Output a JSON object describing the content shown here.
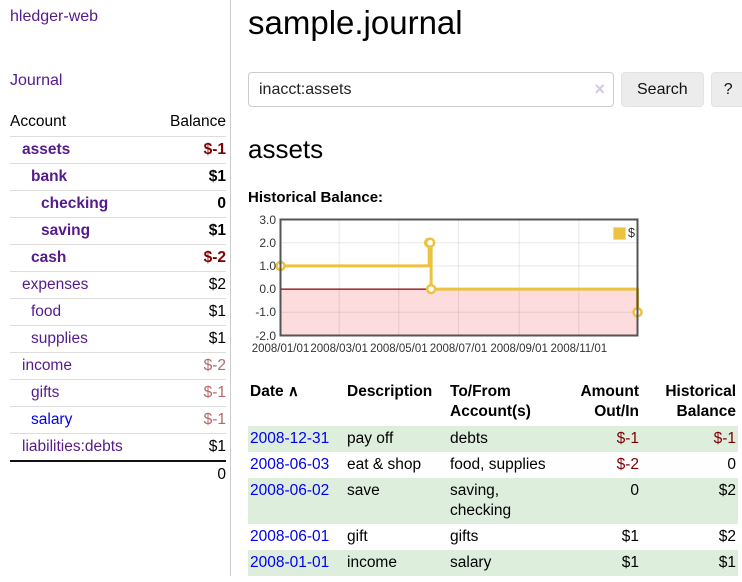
{
  "sidebar": {
    "brand": "hledger-web",
    "journal_link": "Journal",
    "accounts": {
      "col_account": "Account",
      "col_balance": "Balance",
      "rows": [
        {
          "name": "assets",
          "balance": "$-1"
        },
        {
          "name": "bank",
          "balance": "$1"
        },
        {
          "name": "checking",
          "balance": "0"
        },
        {
          "name": "saving",
          "balance": "$1"
        },
        {
          "name": "cash",
          "balance": "$-2"
        },
        {
          "name": "expenses",
          "balance": "$2"
        },
        {
          "name": "food",
          "balance": "$1"
        },
        {
          "name": "supplies",
          "balance": "$1"
        },
        {
          "name": "income",
          "balance": "$-2"
        },
        {
          "name": "gifts",
          "balance": "$-1"
        },
        {
          "name": "salary",
          "balance": "$-1"
        },
        {
          "name": "liabilities:debts",
          "balance": "$1"
        }
      ],
      "total": "0"
    }
  },
  "header": {
    "title": "sample.journal"
  },
  "search": {
    "value": "inacct:assets",
    "button_label": "Search",
    "help_label": "?"
  },
  "icons": {
    "clear_search": "×",
    "sort_ascending": "∧"
  },
  "account_page": {
    "heading": "assets",
    "chart_title": "Historical Balance:"
  },
  "chart_data": {
    "type": "line",
    "step": true,
    "title": "Historical Balance",
    "series": [
      {
        "name": "$",
        "points": [
          {
            "date": "2008-01-01",
            "value": 1
          },
          {
            "date": "2008-06-01",
            "value": 2
          },
          {
            "date": "2008-06-02",
            "value": 2
          },
          {
            "date": "2008-06-03",
            "value": 0
          },
          {
            "date": "2008-12-31",
            "value": -1
          }
        ]
      }
    ],
    "x_range": [
      "2008-01-01",
      "2008-12-31"
    ],
    "x_ticks": [
      "2008/01/01",
      "2008/03/01",
      "2008/05/01",
      "2008/07/01",
      "2008/09/01",
      "2008/11/01"
    ],
    "y_ticks": [
      3.0,
      2.0,
      1.0,
      0.0,
      -1.0,
      -2.0
    ],
    "ylim": [
      -2,
      3
    ],
    "grid": true,
    "legend": {
      "label": "$",
      "position": "top-right"
    },
    "colors": {
      "line": "#edc240",
      "negative_region": "#fcdcdc",
      "zero_line": "#8b0000",
      "border": "#545454"
    }
  },
  "register": {
    "headers": {
      "date": "Date",
      "description": "Description",
      "accounts": "To/From Account(s)",
      "amount": "Amount Out/In",
      "balance": "Historical Balance"
    },
    "rows": [
      {
        "date": "2008-12-31",
        "description": "pay off",
        "accounts": "debts",
        "amount": "$-1",
        "balance": "$-1"
      },
      {
        "date": "2008-06-03",
        "description": "eat & shop",
        "accounts": "food, supplies",
        "amount": "$-2",
        "balance": "0"
      },
      {
        "date": "2008-06-02",
        "description": "save",
        "accounts": "saving, checking",
        "amount": "0",
        "balance": "$2"
      },
      {
        "date": "2008-06-01",
        "description": "gift",
        "accounts": "gifts",
        "amount": "$1",
        "balance": "$2"
      },
      {
        "date": "2008-01-01",
        "description": "income",
        "accounts": "salary",
        "amount": "$1",
        "balance": "$1"
      }
    ]
  },
  "colors": {
    "link_visited_purple": "#551a8b",
    "link_blue": "#0000ee",
    "negative_red": "#800000",
    "negative_muted": "#b36a6a",
    "row_stripe_green": "#ddeedd",
    "series_gold": "#edc240"
  }
}
